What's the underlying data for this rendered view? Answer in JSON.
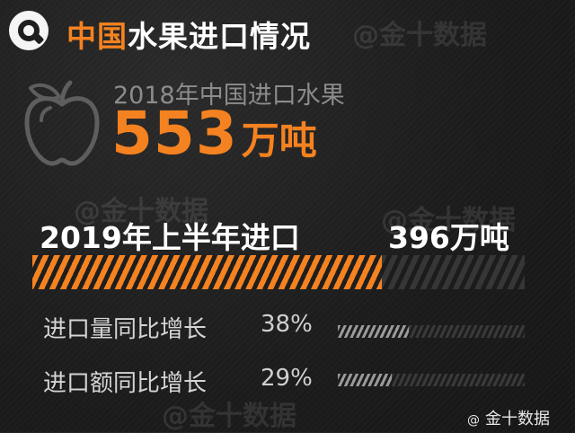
{
  "watermark": "@金十数据",
  "title": {
    "highlight": "中国",
    "rest": "水果进口情况"
  },
  "summary": {
    "subtitle": "2018年中国进口水果",
    "number": "553",
    "unit": "万吨"
  },
  "h1_2019": {
    "label": "2019年上半年进口",
    "value": "396万吨",
    "progress": 0.71
  },
  "stats": [
    {
      "label": "进口量同比增长",
      "value": "38%",
      "progress": 0.38
    },
    {
      "label": "进口额同比增长",
      "value": "29%",
      "progress": 0.29
    }
  ],
  "brand": {
    "icon": "at-icon",
    "text": "金十数据"
  },
  "colors": {
    "accent": "#f58220",
    "background": "#1e1e1e",
    "muted": "#8c8c8c"
  }
}
